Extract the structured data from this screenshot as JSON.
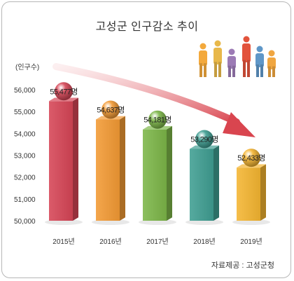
{
  "title": "고성군 인구감소 추이",
  "source": "자료제공 : 고성군청",
  "chart_data": {
    "type": "bar",
    "title": "고성군 인구감소 추이",
    "ylabel": "(인구수)",
    "xlabel": "",
    "categories": [
      "2015년",
      "2016년",
      "2017년",
      "2018년",
      "2019년"
    ],
    "values": [
      55477,
      54637,
      54181,
      53290,
      52433
    ],
    "data_labels": [
      "55,477명",
      "54,637명",
      "54,181명",
      "53,290명",
      "52,433명"
    ],
    "yticks": [
      "50,000",
      "51,000",
      "52,000",
      "53,000",
      "54,000",
      "55,000",
      "56,000"
    ],
    "ylim": [
      50000,
      56000
    ],
    "grid": false,
    "legend": "none",
    "colors": [
      "#d64556",
      "#f39a34",
      "#7cb648",
      "#3f9e92",
      "#f5b531"
    ],
    "arrow_color": "#d9454f"
  }
}
